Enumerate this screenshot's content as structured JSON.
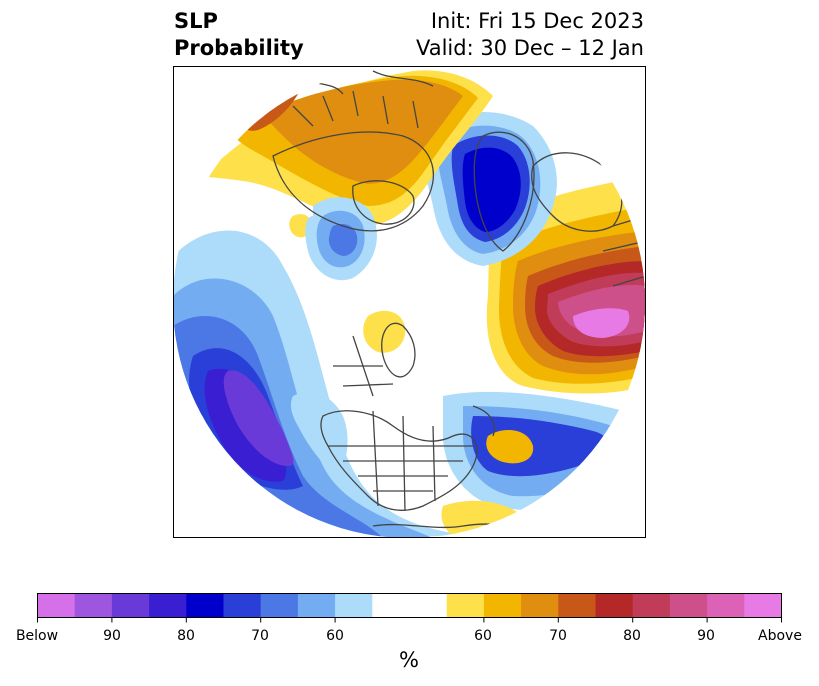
{
  "title": {
    "left_line1": "SLP",
    "left_line2": "Probability",
    "right_line1": "Init: Fri 15 Dec 2023",
    "right_line2": "Valid: 30 Dec – 12 Jan"
  },
  "colorbar": {
    "unit": "%",
    "below_colors": [
      "#d670e8",
      "#9e55df",
      "#6a3ad8",
      "#3a1fd2",
      "#0000cc",
      "#2a3fd8",
      "#4c78e6",
      "#74acf2",
      "#acdcfa"
    ],
    "neutral_color": "#ffffff",
    "above_colors": [
      "#fde04a",
      "#f3b600",
      "#e08e10",
      "#c85818",
      "#b52828",
      "#c03c58",
      "#ce508a",
      "#dc62b8",
      "#e87ae6"
    ],
    "tick_labels": [
      "Below",
      "90",
      "80",
      "70",
      "60",
      "60",
      "70",
      "80",
      "90",
      "Above"
    ]
  },
  "map": {
    "projection": "north polar stereographic",
    "colors": {
      "land_border": "#444444",
      "frame": "#000000"
    }
  }
}
